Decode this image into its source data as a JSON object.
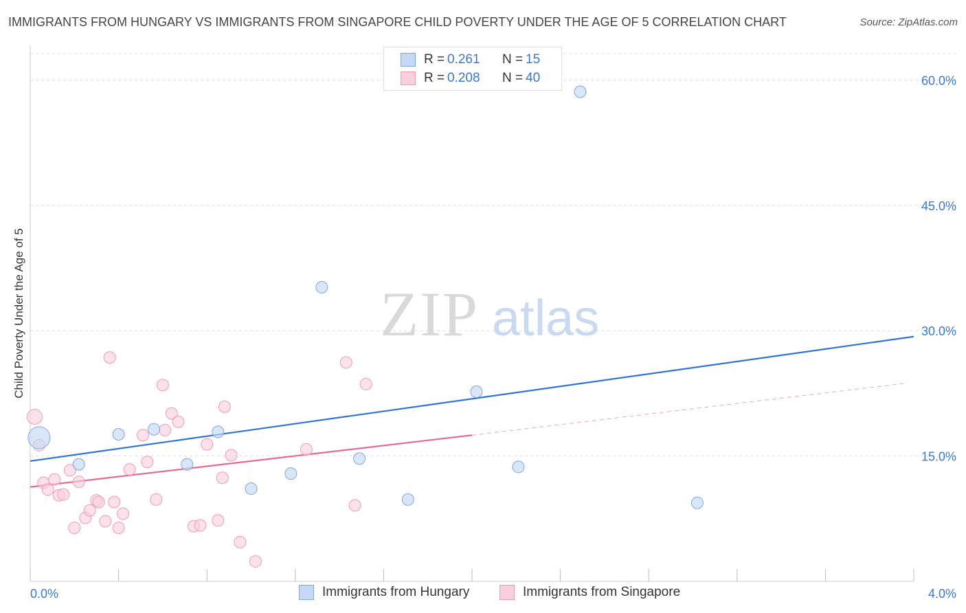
{
  "title": "IMMIGRANTS FROM HUNGARY VS IMMIGRANTS FROM SINGAPORE CHILD POVERTY UNDER THE AGE OF 5 CORRELATION CHART",
  "source": "Source: ZipAtlas.com",
  "watermark": {
    "zip": "ZIP",
    "atlas": "atlas"
  },
  "colors": {
    "hungary_fill": "#c5d9f5",
    "hungary_stroke": "#7fa6dd",
    "hungary_line": "#2e74d6",
    "singapore_fill": "#f9cfdc",
    "singapore_stroke": "#ee9ab4",
    "singapore_line": "#e46a92",
    "axis_text": "#3a78c9",
    "grid": "#dddddd"
  },
  "stats": [
    {
      "r_label": "R =",
      "r_value": "0.261",
      "n_label": "N =",
      "n_value": "15"
    },
    {
      "r_label": "R =",
      "r_value": "0.208",
      "n_label": "N =",
      "n_value": "40"
    }
  ],
  "chart_data": {
    "type": "scatter",
    "title": "IMMIGRANTS FROM HUNGARY VS IMMIGRANTS FROM SINGAPORE CHILD POVERTY UNDER THE AGE OF 5 CORRELATION CHART",
    "xlabel": "",
    "ylabel": "Child Poverty Under the Age of 5",
    "xlim": [
      0,
      4
    ],
    "ylim": [
      0,
      63
    ],
    "x_tick_labels": [
      "0.0%",
      "4.0%"
    ],
    "y_ticks": [
      15,
      30,
      45,
      60
    ],
    "y_tick_labels": [
      "15.0%",
      "30.0%",
      "45.0%",
      "60.0%"
    ],
    "grid": true,
    "legend_position": "bottom",
    "series": [
      {
        "name": "Immigrants from Hungary",
        "color": "#7fa6dd",
        "points": [
          {
            "x": 0.04,
            "y": 17.2,
            "big": true
          },
          {
            "x": 0.22,
            "y": 14.0
          },
          {
            "x": 0.4,
            "y": 17.6
          },
          {
            "x": 0.56,
            "y": 18.2
          },
          {
            "x": 0.71,
            "y": 14.0
          },
          {
            "x": 0.85,
            "y": 17.9
          },
          {
            "x": 1.0,
            "y": 11.1
          },
          {
            "x": 1.18,
            "y": 12.9
          },
          {
            "x": 1.32,
            "y": 35.2
          },
          {
            "x": 1.49,
            "y": 14.7
          },
          {
            "x": 1.71,
            "y": 9.8
          },
          {
            "x": 2.02,
            "y": 22.7
          },
          {
            "x": 2.21,
            "y": 13.7
          },
          {
            "x": 2.49,
            "y": 58.6
          },
          {
            "x": 3.02,
            "y": 9.4
          }
        ],
        "trend": {
          "x": [
            0,
            4
          ],
          "y": [
            14.4,
            29.3
          ]
        }
      },
      {
        "name": "Immigrants from Singapore",
        "color": "#ee9ab4",
        "points": [
          {
            "x": 0.02,
            "y": 19.7
          },
          {
            "x": 0.04,
            "y": 16.3
          },
          {
            "x": 0.06,
            "y": 11.8
          },
          {
            "x": 0.08,
            "y": 11.0
          },
          {
            "x": 0.11,
            "y": 12.2
          },
          {
            "x": 0.13,
            "y": 10.3
          },
          {
            "x": 0.15,
            "y": 10.4
          },
          {
            "x": 0.18,
            "y": 13.3
          },
          {
            "x": 0.2,
            "y": 6.4
          },
          {
            "x": 0.22,
            "y": 11.9
          },
          {
            "x": 0.25,
            "y": 7.6
          },
          {
            "x": 0.27,
            "y": 8.5
          },
          {
            "x": 0.3,
            "y": 9.7
          },
          {
            "x": 0.31,
            "y": 9.5
          },
          {
            "x": 0.34,
            "y": 7.2
          },
          {
            "x": 0.36,
            "y": 26.8
          },
          {
            "x": 0.38,
            "y": 9.5
          },
          {
            "x": 0.4,
            "y": 6.4
          },
          {
            "x": 0.42,
            "y": 8.1
          },
          {
            "x": 0.45,
            "y": 13.4
          },
          {
            "x": 0.51,
            "y": 17.5
          },
          {
            "x": 0.53,
            "y": 14.3
          },
          {
            "x": 0.57,
            "y": 9.8
          },
          {
            "x": 0.6,
            "y": 23.5
          },
          {
            "x": 0.61,
            "y": 18.1
          },
          {
            "x": 0.64,
            "y": 20.1
          },
          {
            "x": 0.67,
            "y": 19.1
          },
          {
            "x": 0.74,
            "y": 6.6
          },
          {
            "x": 0.77,
            "y": 6.7
          },
          {
            "x": 0.8,
            "y": 16.4
          },
          {
            "x": 0.85,
            "y": 7.3
          },
          {
            "x": 0.87,
            "y": 12.4
          },
          {
            "x": 0.88,
            "y": 20.9
          },
          {
            "x": 0.91,
            "y": 15.1
          },
          {
            "x": 0.95,
            "y": 4.7
          },
          {
            "x": 1.02,
            "y": 2.4
          },
          {
            "x": 1.25,
            "y": 15.8
          },
          {
            "x": 1.43,
            "y": 26.2
          },
          {
            "x": 1.47,
            "y": 9.1
          },
          {
            "x": 1.52,
            "y": 23.6
          }
        ],
        "trend": {
          "x": [
            0,
            2.0
          ],
          "y": [
            11.3,
            17.5
          ]
        },
        "trend_extension": {
          "x": [
            2.0,
            3.96
          ],
          "y": [
            17.5,
            23.7
          ]
        }
      }
    ]
  }
}
